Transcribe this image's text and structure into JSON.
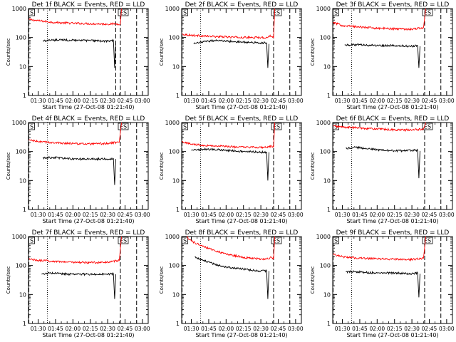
{
  "chart_data": [
    {
      "type": "line",
      "title": "Det 1f BLACK = Events, RED = LLD",
      "xlabel": "Start Time (27-Oct-08 01:21:40)",
      "ylabel": "Counts/sec",
      "yscale": "log",
      "ylim": [
        1,
        1000
      ],
      "xlim": [
        "01:21:40",
        "03:05:00"
      ],
      "x_ticks": [
        "01:30",
        "01:45",
        "02:00",
        "02:15",
        "02:30",
        "02:45",
        "03:00"
      ],
      "y_ticks": [
        "1",
        "10",
        "100",
        "1000"
      ],
      "markers": {
        "vertical_lines_dashed": [
          "01:22",
          "02:37",
          "02:41",
          "02:55"
        ],
        "vertical_lines_dotted": [
          "01:38"
        ],
        "labels_top": [
          "S",
          "ES"
        ]
      },
      "series": [
        {
          "name": "RED = LLD",
          "color": "#ff0000",
          "x": [
            "01:22",
            "01:30",
            "01:45",
            "02:00",
            "02:15",
            "02:30",
            "02:37",
            "02:39",
            "02:41",
            "02:42"
          ],
          "y": [
            420,
            380,
            330,
            310,
            300,
            290,
            300,
            290,
            300,
            1000
          ]
        },
        {
          "name": "BLACK = Events",
          "color": "#000000",
          "x": [
            "01:34",
            "01:40",
            "01:50",
            "02:00",
            "02:15",
            "02:30",
            "02:35",
            "02:36",
            "02:37"
          ],
          "y": [
            75,
            80,
            82,
            80,
            78,
            75,
            80,
            9,
            75
          ]
        }
      ]
    },
    {
      "type": "line",
      "title": "Det 2f BLACK = Events, RED = LLD",
      "xlabel": "Start Time (27-Oct-08 01:21:40)",
      "ylabel": "Counts/sec",
      "yscale": "log",
      "ylim": [
        1,
        1000
      ],
      "xlim": [
        "01:21:40",
        "03:05:00"
      ],
      "x_ticks": [
        "01:30",
        "01:45",
        "02:00",
        "02:15",
        "02:30",
        "02:45",
        "03:00"
      ],
      "y_ticks": [
        "1",
        "10",
        "100",
        "1000"
      ],
      "markers": {
        "vertical_lines_dashed": [
          "01:22",
          "02:41",
          "02:55"
        ],
        "vertical_lines_dotted": [
          "01:38"
        ],
        "labels_top": [
          "S",
          "ES"
        ]
      },
      "series": [
        {
          "name": "RED = LLD",
          "color": "#ff0000",
          "x": [
            "01:22",
            "01:30",
            "01:45",
            "02:00",
            "02:15",
            "02:30",
            "02:36",
            "02:38",
            "02:41",
            "02:42"
          ],
          "y": [
            130,
            120,
            110,
            105,
            100,
            100,
            100,
            120,
            100,
            1000
          ]
        },
        {
          "name": "BLACK = Events",
          "color": "#000000",
          "x": [
            "01:32",
            "01:40",
            "01:50",
            "02:00",
            "02:15",
            "02:30",
            "02:35",
            "02:36",
            "02:37"
          ],
          "y": [
            60,
            70,
            80,
            75,
            70,
            65,
            65,
            9,
            60
          ]
        }
      ]
    },
    {
      "type": "line",
      "title": "Det 3f BLACK = Events, RED = LLD",
      "xlabel": "Start Time (27-Oct-08 01:21:40)",
      "ylabel": "Counts/sec",
      "yscale": "log",
      "ylim": [
        1,
        1000
      ],
      "xlim": [
        "01:21:40",
        "03:05:00"
      ],
      "x_ticks": [
        "01:30",
        "01:45",
        "02:00",
        "02:15",
        "02:30",
        "02:45",
        "03:00"
      ],
      "y_ticks": [
        "1",
        "10",
        "100",
        "1000"
      ],
      "markers": {
        "vertical_lines_dashed": [
          "01:22",
          "02:41",
          "02:55"
        ],
        "vertical_lines_dotted": [
          "01:38"
        ],
        "labels_top": [
          "S",
          "ES"
        ]
      },
      "series": [
        {
          "name": "RED = LLD",
          "color": "#ff0000",
          "x": [
            "01:22",
            "01:30",
            "01:45",
            "02:00",
            "02:15",
            "02:30",
            "02:40",
            "02:42"
          ],
          "y": [
            330,
            260,
            230,
            210,
            200,
            195,
            220,
            1000
          ]
        },
        {
          "name": "BLACK = Events",
          "color": "#000000",
          "x": [
            "01:32",
            "01:40",
            "01:50",
            "02:00",
            "02:15",
            "02:30",
            "02:35",
            "02:36",
            "02:37"
          ],
          "y": [
            55,
            57,
            55,
            53,
            52,
            50,
            52,
            9,
            50
          ]
        }
      ]
    },
    {
      "type": "line",
      "title": "Det 4f BLACK = Events, RED = LLD",
      "xlabel": "Start Time (27-Oct-08 01:21:40)",
      "ylabel": "Counts/sec",
      "yscale": "log",
      "ylim": [
        1,
        1000
      ],
      "xlim": [
        "01:21:40",
        "03:05:00"
      ],
      "x_ticks": [
        "01:30",
        "01:45",
        "02:00",
        "02:15",
        "02:30",
        "02:45",
        "03:00"
      ],
      "y_ticks": [
        "1",
        "10",
        "100",
        "1000"
      ],
      "markers": {
        "vertical_lines_dashed": [
          "01:22",
          "02:41",
          "02:55"
        ],
        "vertical_lines_dotted": [
          "01:38"
        ],
        "labels_top": [
          "S",
          "ES"
        ]
      },
      "series": [
        {
          "name": "RED = LLD",
          "color": "#ff0000",
          "x": [
            "01:22",
            "01:30",
            "01:45",
            "02:00",
            "02:15",
            "02:30",
            "02:40",
            "02:42"
          ],
          "y": [
            250,
            220,
            200,
            190,
            180,
            190,
            210,
            1000
          ]
        },
        {
          "name": "BLACK = Events",
          "color": "#000000",
          "x": [
            "01:34",
            "01:40",
            "01:50",
            "02:00",
            "02:15",
            "02:30",
            "02:35",
            "02:36",
            "02:37"
          ],
          "y": [
            60,
            62,
            60,
            55,
            55,
            55,
            57,
            7,
            55
          ]
        }
      ]
    },
    {
      "type": "line",
      "title": "Det 5f BLACK = Events, RED = LLD",
      "xlabel": "Start Time (27-Oct-08 01:21:40)",
      "ylabel": "Counts/sec",
      "yscale": "log",
      "ylim": [
        1,
        1000
      ],
      "xlim": [
        "01:21:40",
        "03:05:00"
      ],
      "x_ticks": [
        "01:30",
        "01:45",
        "02:00",
        "02:15",
        "02:30",
        "02:45",
        "03:00"
      ],
      "y_ticks": [
        "1",
        "10",
        "100",
        "1000"
      ],
      "markers": {
        "vertical_lines_dashed": [
          "01:22",
          "02:41",
          "02:55"
        ],
        "vertical_lines_dotted": [
          "01:38"
        ],
        "labels_top": [
          "S",
          "ES"
        ]
      },
      "series": [
        {
          "name": "RED = LLD",
          "color": "#ff0000",
          "x": [
            "01:22",
            "01:30",
            "01:45",
            "02:00",
            "02:15",
            "02:30",
            "02:37",
            "02:39",
            "02:41",
            "02:42"
          ],
          "y": [
            220,
            180,
            160,
            150,
            140,
            140,
            140,
            160,
            140,
            1000
          ]
        },
        {
          "name": "BLACK = Events",
          "color": "#000000",
          "x": [
            "01:30",
            "01:40",
            "01:50",
            "02:00",
            "02:15",
            "02:30",
            "02:35",
            "02:36",
            "02:37"
          ],
          "y": [
            110,
            120,
            120,
            110,
            100,
            95,
            95,
            10,
            95
          ]
        }
      ]
    },
    {
      "type": "line",
      "title": "Det 6f BLACK = Events, RED = LLD",
      "xlabel": "Start Time (27-Oct-08 01:21:40)",
      "ylabel": "Counts/sec",
      "yscale": "log",
      "ylim": [
        1,
        1000
      ],
      "xlim": [
        "01:21:40",
        "03:05:00"
      ],
      "x_ticks": [
        "01:30",
        "01:45",
        "02:00",
        "02:15",
        "02:30",
        "02:45",
        "03:00"
      ],
      "y_ticks": [
        "1",
        "10",
        "100",
        "1000"
      ],
      "markers": {
        "vertical_lines_dashed": [
          "01:22",
          "02:41",
          "02:55"
        ],
        "vertical_lines_dotted": [
          "01:38"
        ],
        "labels_top": [
          "S",
          "ES"
        ]
      },
      "series": [
        {
          "name": "RED = LLD",
          "color": "#ff0000",
          "x": [
            "01:22",
            "01:30",
            "01:45",
            "02:00",
            "02:15",
            "02:30",
            "02:40",
            "02:42"
          ],
          "y": [
            750,
            700,
            650,
            600,
            560,
            550,
            600,
            1000
          ]
        },
        {
          "name": "BLACK = Events",
          "color": "#000000",
          "x": [
            "01:33",
            "01:40",
            "01:50",
            "02:00",
            "02:15",
            "02:30",
            "02:35",
            "02:36",
            "02:37"
          ],
          "y": [
            130,
            140,
            130,
            115,
            105,
            110,
            110,
            12,
            105
          ]
        }
      ]
    },
    {
      "type": "line",
      "title": "Det 7f BLACK = Events, RED = LLD",
      "xlabel": "Start Time (27-Oct-08 01:21:40)",
      "ylabel": "Counts/sec",
      "yscale": "log",
      "ylim": [
        1,
        1000
      ],
      "xlim": [
        "01:21:40",
        "03:05:00"
      ],
      "x_ticks": [
        "01:30",
        "01:45",
        "02:00",
        "02:15",
        "02:30",
        "02:45",
        "03:00"
      ],
      "y_ticks": [
        "1",
        "10",
        "100",
        "1000"
      ],
      "markers": {
        "vertical_lines_dashed": [
          "01:22",
          "02:41",
          "02:55"
        ],
        "vertical_lines_dotted": [
          "01:38"
        ],
        "labels_top": [
          "S",
          "ES"
        ]
      },
      "series": [
        {
          "name": "RED = LLD",
          "color": "#ff0000",
          "x": [
            "01:22",
            "01:30",
            "01:45",
            "02:00",
            "02:15",
            "02:30",
            "02:40",
            "02:42"
          ],
          "y": [
            170,
            150,
            140,
            130,
            125,
            130,
            150,
            1000
          ]
        },
        {
          "name": "BLACK = Events",
          "color": "#000000",
          "x": [
            "01:33",
            "01:40",
            "01:50",
            "02:00",
            "02:15",
            "02:30",
            "02:35",
            "02:36",
            "02:37"
          ],
          "y": [
            50,
            55,
            52,
            50,
            50,
            50,
            52,
            7,
            50
          ]
        }
      ]
    },
    {
      "type": "line",
      "title": "Det 8f BLACK = Events, RED = LLD",
      "xlabel": "Start Time (27-Oct-08 01:21:40)",
      "ylabel": "Counts/sec",
      "yscale": "log",
      "ylim": [
        1,
        1000
      ],
      "xlim": [
        "01:21:40",
        "03:05:00"
      ],
      "x_ticks": [
        "01:30",
        "01:45",
        "02:00",
        "02:15",
        "02:30",
        "02:45",
        "03:00"
      ],
      "y_ticks": [
        "1",
        "10",
        "100",
        "1000"
      ],
      "markers": {
        "vertical_lines_dashed": [
          "01:22",
          "02:41",
          "02:55"
        ],
        "vertical_lines_dotted": [
          "01:38"
        ],
        "labels_top": [
          "S",
          "ES"
        ]
      },
      "series": [
        {
          "name": "RED = LLD",
          "color": "#ff0000",
          "x": [
            "01:26",
            "01:30",
            "01:40",
            "01:50",
            "02:00",
            "02:15",
            "02:30",
            "02:36",
            "02:38",
            "02:41",
            "02:42"
          ],
          "y": [
            1000,
            700,
            450,
            330,
            250,
            190,
            170,
            170,
            190,
            170,
            1000
          ]
        },
        {
          "name": "BLACK = Events",
          "color": "#000000",
          "x": [
            "01:33",
            "01:40",
            "01:50",
            "02:00",
            "02:15",
            "02:30",
            "02:35",
            "02:36",
            "02:37"
          ],
          "y": [
            200,
            150,
            110,
            90,
            75,
            65,
            65,
            7,
            65
          ]
        }
      ]
    },
    {
      "type": "line",
      "title": "Det 9f BLACK = Events, RED = LLD",
      "xlabel": "Start Time (27-Oct-08 01:21:40)",
      "ylabel": "Counts/sec",
      "yscale": "log",
      "ylim": [
        1,
        1000
      ],
      "xlim": [
        "01:21:40",
        "03:05:00"
      ],
      "x_ticks": [
        "01:30",
        "01:45",
        "02:00",
        "02:15",
        "02:30",
        "02:45",
        "03:00"
      ],
      "y_ticks": [
        "1",
        "10",
        "100",
        "1000"
      ],
      "markers": {
        "vertical_lines_dashed": [
          "01:22",
          "02:41",
          "02:55"
        ],
        "vertical_lines_dotted": [
          "01:38"
        ],
        "labels_top": [
          "S",
          "ES"
        ]
      },
      "series": [
        {
          "name": "RED = LLD",
          "color": "#ff0000",
          "x": [
            "01:22",
            "01:30",
            "01:45",
            "02:00",
            "02:15",
            "02:30",
            "02:40",
            "02:42"
          ],
          "y": [
            250,
            200,
            180,
            170,
            165,
            160,
            180,
            1000
          ]
        },
        {
          "name": "BLACK = Events",
          "color": "#000000",
          "x": [
            "01:33",
            "01:40",
            "01:50",
            "02:00",
            "02:15",
            "02:30",
            "02:35",
            "02:36",
            "02:37"
          ],
          "y": [
            60,
            62,
            58,
            55,
            55,
            52,
            55,
            8,
            52
          ]
        }
      ]
    }
  ]
}
